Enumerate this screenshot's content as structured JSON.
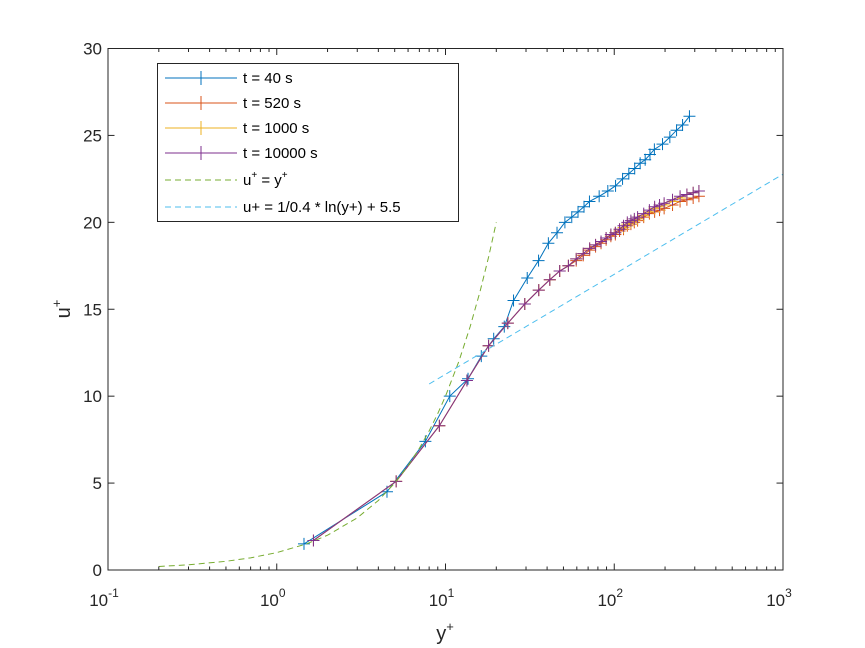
{
  "chart_data": {
    "type": "line",
    "xscale": "log",
    "xlim": [
      0.1,
      1000
    ],
    "ylim": [
      0,
      30
    ],
    "grid": false,
    "legend_position": "top-left",
    "xlabel": {
      "base": "y",
      "sup": "+"
    },
    "ylabel": {
      "base": "u",
      "sup": "+"
    },
    "xticks": [
      {
        "value": 0.1,
        "base": "10",
        "exp": "-1"
      },
      {
        "value": 1,
        "base": "10",
        "exp": "0"
      },
      {
        "value": 10,
        "base": "10",
        "exp": "1"
      },
      {
        "value": 100,
        "base": "10",
        "exp": "2"
      },
      {
        "value": 1000,
        "base": "10",
        "exp": "3"
      }
    ],
    "yticks": [
      {
        "value": 0,
        "label": "0"
      },
      {
        "value": 5,
        "label": "5"
      },
      {
        "value": 10,
        "label": "10"
      },
      {
        "value": 15,
        "label": "15"
      },
      {
        "value": 20,
        "label": "20"
      },
      {
        "value": 25,
        "label": "25"
      },
      {
        "value": 30,
        "label": "30"
      }
    ],
    "series": [
      {
        "name": "t = 40 s",
        "color": "#0072BD",
        "style": "solid",
        "marker": "+",
        "x": [
          1.45,
          4.5,
          7.6,
          10.6,
          13.6,
          16.3,
          19.3,
          22.3,
          25.3,
          30.5,
          35.6,
          40.7,
          45.8,
          51,
          56,
          61,
          66.2,
          71.3,
          81.4,
          91.6,
          101.8,
          112,
          122,
          132.2,
          142.4,
          152.5,
          162.8,
          172.9,
          193.2,
          213.5,
          234,
          254,
          279
        ],
        "y": [
          1.5,
          4.5,
          7.4,
          10.0,
          11.0,
          12.3,
          13.3,
          14.0,
          15.5,
          16.8,
          17.8,
          18.8,
          19.4,
          20.0,
          20.3,
          20.6,
          20.9,
          21.2,
          21.5,
          21.8,
          22.1,
          22.5,
          22.8,
          23.1,
          23.4,
          23.6,
          23.9,
          24.2,
          24.5,
          24.9,
          25.3,
          25.6,
          26.1
        ]
      },
      {
        "name": "t = 520 s",
        "color": "#D95319",
        "style": "solid",
        "marker": "+",
        "x": [
          1.65,
          5.1,
          9.2,
          13.4,
          18,
          23.4,
          29.5,
          35.7,
          41.5,
          47.5,
          53.5,
          59.5,
          65.5,
          71.5,
          77.5,
          83.5,
          89.5,
          95.5,
          101.5,
          107.5,
          113.5,
          119.5,
          125.5,
          131.5,
          137.5,
          149.5,
          161.5,
          173.5,
          185.5,
          197.5,
          221.5,
          245.5,
          269.5,
          293.5,
          317.5
        ],
        "y": [
          1.7,
          5.1,
          8.3,
          10.9,
          12.9,
          14.2,
          15.3,
          16.1,
          16.7,
          17.2,
          17.5,
          17.8,
          18.1,
          18.4,
          18.6,
          18.8,
          19.0,
          19.2,
          19.3,
          19.5,
          19.6,
          19.8,
          19.9,
          20.0,
          20.1,
          20.3,
          20.5,
          20.6,
          20.7,
          20.8,
          21.0,
          21.2,
          21.3,
          21.4,
          21.5
        ]
      },
      {
        "name": "t = 1000 s",
        "color": "#EDB120",
        "style": "solid",
        "marker": "+",
        "x": [
          1.65,
          5.1,
          9.2,
          13.4,
          18,
          23.4,
          29.5,
          35.7,
          41.5,
          47.5,
          53.5,
          59.5,
          65.5,
          71.5,
          77.5,
          83.5,
          89.5,
          95.5,
          101.5,
          107.5,
          113.5,
          119.5,
          125.5,
          131.5,
          137.5,
          149.5,
          161.5,
          173.5,
          185.5,
          197.5,
          221.5,
          245.5,
          269.5,
          293.5,
          317.5
        ],
        "y": [
          1.7,
          5.1,
          8.3,
          10.9,
          12.9,
          14.2,
          15.3,
          16.1,
          16.7,
          17.2,
          17.5,
          17.9,
          18.2,
          18.5,
          18.7,
          18.9,
          19.1,
          19.3,
          19.4,
          19.6,
          19.7,
          19.9,
          20.0,
          20.1,
          20.2,
          20.4,
          20.6,
          20.8,
          20.9,
          21.0,
          21.2,
          21.4,
          21.6,
          21.7,
          21.8
        ]
      },
      {
        "name": "t = 10000 s",
        "color": "#7E2F8E",
        "style": "solid",
        "marker": "+",
        "x": [
          1.65,
          5.1,
          9.2,
          13.4,
          18,
          23.4,
          29.5,
          35.7,
          41.5,
          47.5,
          53.5,
          59.5,
          65.5,
          71.5,
          77.5,
          83.5,
          89.5,
          95.5,
          101.5,
          107.5,
          113.5,
          119.5,
          125.5,
          131.5,
          137.5,
          149.5,
          161.5,
          173.5,
          185.5,
          197.5,
          221.5,
          245.5,
          269.5,
          293.5,
          317.5
        ],
        "y": [
          1.7,
          5.1,
          8.3,
          10.9,
          12.9,
          14.2,
          15.3,
          16.1,
          16.7,
          17.2,
          17.5,
          17.9,
          18.2,
          18.5,
          18.7,
          18.9,
          19.1,
          19.3,
          19.4,
          19.6,
          19.8,
          20.0,
          20.1,
          20.2,
          20.3,
          20.5,
          20.7,
          20.9,
          21.0,
          21.1,
          21.3,
          21.5,
          21.6,
          21.7,
          21.8
        ]
      },
      {
        "name": "u+ = y+",
        "name_parts": {
          "a": "u",
          "a_sup": "+",
          "mid": " = y",
          "b_sup": "+"
        },
        "color": "#77AC30",
        "style": "dashed",
        "marker": "none",
        "x": [
          0.2,
          0.3,
          0.5,
          0.7,
          1,
          1.5,
          2,
          3,
          4,
          5,
          6,
          7,
          8,
          9,
          10,
          12,
          14,
          16,
          18,
          20
        ],
        "y": [
          0.2,
          0.3,
          0.5,
          0.7,
          1,
          1.5,
          2,
          3,
          4,
          5,
          6,
          7,
          8,
          9,
          10,
          12,
          14,
          16,
          18,
          20
        ]
      },
      {
        "name": "u+ = 1/0.4 * ln(y+) + 5.5",
        "color": "#4DBEEE",
        "style": "dashed",
        "marker": "none",
        "x": [
          8,
          10,
          20,
          50,
          100,
          200,
          500,
          1000
        ],
        "y": [
          10.7,
          11.26,
          12.99,
          15.28,
          17.01,
          18.75,
          21.04,
          22.77
        ]
      }
    ]
  }
}
